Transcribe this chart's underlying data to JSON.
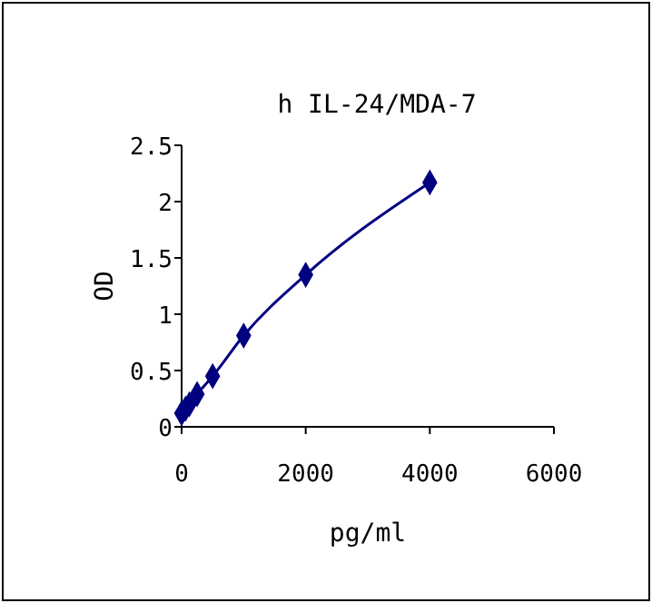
{
  "chart_data": {
    "type": "line",
    "title": "h IL-24/MDA-7",
    "xlabel": "pg/ml",
    "ylabel": "OD",
    "x": [
      0,
      62.5,
      125,
      250,
      500,
      1000,
      2000,
      4000
    ],
    "series": [
      {
        "color": "#000080",
        "values": [
          0.12,
          0.16,
          0.2,
          0.29,
          0.45,
          0.81,
          1.35,
          2.17
        ]
      }
    ],
    "xlim": [
      0,
      6000
    ],
    "xticks": [
      0,
      2000,
      4000,
      6000
    ],
    "ylim": [
      0,
      2.5
    ],
    "yticks": [
      0,
      0.5,
      1,
      1.5,
      2,
      2.5
    ],
    "marker": "diamond"
  }
}
